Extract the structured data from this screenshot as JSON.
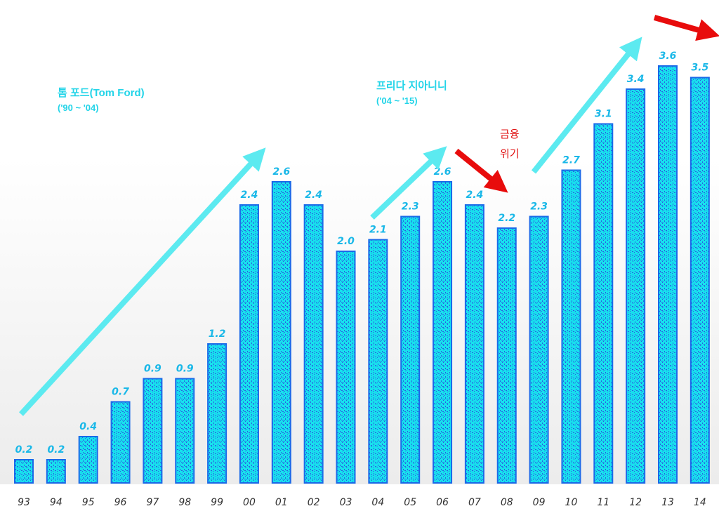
{
  "chart_data": {
    "type": "bar",
    "title": "",
    "xlabel": "",
    "ylabel": "",
    "ylim": [
      0,
      4
    ],
    "grid": false,
    "categories": [
      "93",
      "94",
      "95",
      "96",
      "97",
      "98",
      "99",
      "00",
      "01",
      "02",
      "03",
      "04",
      "05",
      "06",
      "07",
      "08",
      "09",
      "10",
      "11",
      "12",
      "13",
      "14"
    ],
    "values": [
      0.2,
      0.2,
      0.4,
      0.7,
      0.9,
      0.9,
      1.2,
      2.4,
      2.6,
      2.4,
      2.0,
      2.1,
      2.3,
      2.6,
      2.4,
      2.2,
      2.3,
      2.7,
      3.1,
      3.4,
      3.6,
      3.5
    ],
    "value_labels": [
      "0.2",
      "0.2",
      "0.4",
      "0.7",
      "0.9",
      "0.9",
      "1.2",
      "2.4",
      "2.6",
      "2.4",
      "2.0",
      "2.1",
      "2.3",
      "2.6",
      "2.4",
      "2.2",
      "2.3",
      "2.7",
      "3.1",
      "3.4",
      "3.6",
      "3.5"
    ],
    "annotations": {
      "tom_ford": "톰 포드(Tom Ford)",
      "tom_ford_period": "('90 ~ '04)",
      "frida": "프리다 지아니니",
      "frida_period": "('04 ~ '15)",
      "crisis_line1": "금융",
      "crisis_line2": "위기"
    },
    "colors": {
      "bar_fill": "#14e6f0",
      "bar_border": "#1a6ae8",
      "arrow_up": "#5ceaf0",
      "arrow_down": "#e80c0c",
      "value_label": "#1ab8e8"
    }
  }
}
